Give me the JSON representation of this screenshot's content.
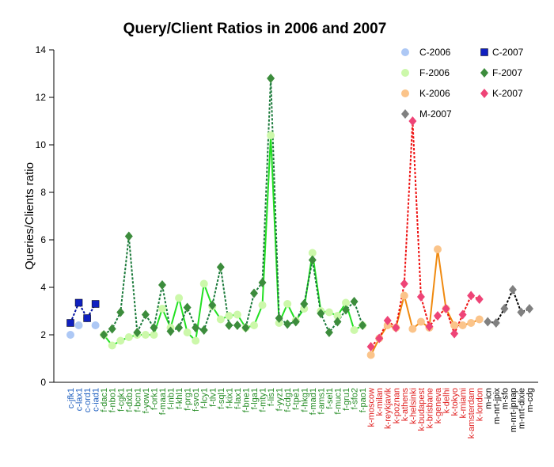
{
  "chart_data": {
    "type": "line",
    "title": "Query/Client Ratios in 2006 and 2007",
    "y_label": "Queries/Clients ratio",
    "categories": [
      "c-jfk1",
      "c-lax1",
      "c-ord1",
      "c-iad1",
      "f-dac1",
      "f-nbo1",
      "f-cgk1",
      "f-dxb1",
      "f-bcn1",
      "f-yow1",
      "f-ork1",
      "f-maa1",
      "f-inb1",
      "f-khl1",
      "f-prg1",
      "f-svo1",
      "f-lcy1",
      "f-tlv1",
      "f-sql1",
      "f-kix1",
      "f-lax1",
      "f-bne1",
      "f-lga1",
      "f-mty1",
      "f-lis1",
      "f-yyz1",
      "f-cdg1",
      "f-tpe1",
      "f-hkg1",
      "f-mad1",
      "f-ams1",
      "f-sel1",
      "f-muc1",
      "f-gru1",
      "f-sfo2",
      "f-pao1",
      "k-moscow",
      "k-milan",
      "k-reykjavik",
      "k-poznan",
      "k-athens",
      "k-helsinki",
      "k-budapest",
      "k-brisbane",
      "k-geneva",
      "k-delhi",
      "k-tokyo",
      "k-miami",
      "k-amsterdam",
      "k-london",
      "m-icn",
      "m-nrt-jpix",
      "m-sfo",
      "m-nrt-jpnap",
      "m-nrt-dixie",
      "m-cdg"
    ],
    "ylim": [
      0,
      14
    ],
    "yticks": [
      0,
      2,
      4,
      6,
      8,
      10,
      12,
      14
    ],
    "series": [
      {
        "name": "C-2006",
        "color": "#adc8f5",
        "marker": "circle",
        "line_color": null,
        "line_style": null,
        "values": [
          2.0,
          2.4,
          2.7,
          2.4,
          null,
          null,
          null,
          null,
          null,
          null,
          null,
          null,
          null,
          null,
          null,
          null,
          null,
          null,
          null,
          null,
          null,
          null,
          null,
          null,
          null,
          null,
          null,
          null,
          null,
          null,
          null,
          null,
          null,
          null,
          null,
          null,
          null,
          null,
          null,
          null,
          null,
          null,
          null,
          null,
          null,
          null,
          null,
          null,
          null,
          null,
          null,
          null,
          null,
          null,
          null,
          null
        ]
      },
      {
        "name": "F-2006",
        "color": "#ccf8aa",
        "marker": "circle",
        "line_color": "#22e022",
        "line_style": "solid",
        "values": [
          null,
          null,
          null,
          null,
          2.0,
          1.55,
          1.75,
          1.9,
          2.0,
          2.0,
          2.0,
          3.1,
          2.3,
          3.55,
          2.1,
          1.75,
          4.15,
          3.2,
          2.65,
          2.8,
          2.85,
          2.3,
          2.4,
          3.25,
          10.4,
          2.5,
          3.3,
          2.6,
          3.1,
          5.45,
          3.0,
          2.95,
          2.8,
          3.35,
          2.2,
          2.4,
          null,
          null,
          null,
          null,
          null,
          null,
          null,
          null,
          null,
          null,
          null,
          null,
          null,
          null,
          null,
          null,
          null,
          null,
          null,
          null
        ]
      },
      {
        "name": "K-2006",
        "color": "#fbc48a",
        "marker": "circle",
        "line_color": "#f08a10",
        "line_style": "solid",
        "values": [
          null,
          null,
          null,
          null,
          null,
          null,
          null,
          null,
          null,
          null,
          null,
          null,
          null,
          null,
          null,
          null,
          null,
          null,
          null,
          null,
          null,
          null,
          null,
          null,
          null,
          null,
          null,
          null,
          null,
          null,
          null,
          null,
          null,
          null,
          null,
          null,
          1.15,
          1.85,
          2.4,
          2.3,
          3.65,
          2.25,
          2.55,
          2.3,
          5.6,
          3.1,
          2.4,
          2.4,
          2.5,
          2.65,
          null,
          null,
          null,
          null,
          null,
          null
        ]
      },
      {
        "name": "M-2007",
        "color": "#808080",
        "marker": "diamond",
        "line_color": "#000000",
        "line_style": "dotted",
        "label_color": "#000000",
        "values": [
          null,
          null,
          null,
          null,
          null,
          null,
          null,
          null,
          null,
          null,
          null,
          null,
          null,
          null,
          null,
          null,
          null,
          null,
          null,
          null,
          null,
          null,
          null,
          null,
          null,
          null,
          null,
          null,
          null,
          null,
          null,
          null,
          null,
          null,
          null,
          null,
          null,
          null,
          null,
          null,
          null,
          null,
          null,
          null,
          null,
          null,
          null,
          null,
          null,
          null,
          2.55,
          2.5,
          3.1,
          3.9,
          2.95,
          3.1
        ]
      },
      {
        "name": "C-2007",
        "color": "#1020c0",
        "marker": "square",
        "line_color": "#0010a0",
        "line_style": "dotted",
        "label_color": "#2060c0",
        "values": [
          2.5,
          3.35,
          2.7,
          3.3,
          null,
          null,
          null,
          null,
          null,
          null,
          null,
          null,
          null,
          null,
          null,
          null,
          null,
          null,
          null,
          null,
          null,
          null,
          null,
          null,
          null,
          null,
          null,
          null,
          null,
          null,
          null,
          null,
          null,
          null,
          null,
          null,
          null,
          null,
          null,
          null,
          null,
          null,
          null,
          null,
          null,
          null,
          null,
          null,
          null,
          null,
          null,
          null,
          null,
          null,
          null,
          null
        ]
      },
      {
        "name": "F-2007",
        "color": "#3c8c3c",
        "marker": "diamond",
        "line_color": "#1a7a3a",
        "line_style": "dotted",
        "label_color": "#228b22",
        "values": [
          null,
          null,
          null,
          null,
          2.0,
          2.25,
          2.95,
          6.15,
          2.1,
          2.85,
          2.3,
          4.1,
          2.15,
          2.3,
          3.15,
          2.3,
          2.2,
          3.25,
          4.85,
          2.4,
          2.4,
          2.3,
          3.75,
          4.2,
          12.8,
          2.7,
          2.45,
          2.55,
          3.3,
          5.15,
          2.9,
          2.1,
          2.55,
          3.05,
          3.4,
          2.4,
          null,
          null,
          null,
          null,
          null,
          null,
          null,
          null,
          null,
          null,
          null,
          null,
          null,
          null,
          null,
          null,
          null,
          null,
          null,
          null
        ]
      },
      {
        "name": "K-2007",
        "color": "#ee4477",
        "marker": "diamond",
        "line_color": "#ee1010",
        "line_style": "dotted",
        "label_color": "#e02020",
        "values": [
          null,
          null,
          null,
          null,
          null,
          null,
          null,
          null,
          null,
          null,
          null,
          null,
          null,
          null,
          null,
          null,
          null,
          null,
          null,
          null,
          null,
          null,
          null,
          null,
          null,
          null,
          null,
          null,
          null,
          null,
          null,
          null,
          null,
          null,
          null,
          null,
          1.5,
          1.85,
          2.6,
          2.3,
          4.15,
          11.0,
          3.6,
          2.35,
          2.8,
          3.1,
          2.05,
          2.85,
          3.65,
          3.5,
          null,
          null,
          null,
          null,
          null,
          null
        ]
      }
    ]
  }
}
